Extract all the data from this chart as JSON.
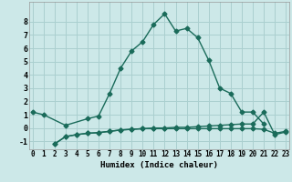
{
  "xlabel": "Humidex (Indice chaleur)",
  "bg_color": "#cce8e8",
  "grid_color": "#aacfcf",
  "line_color": "#1a6b5a",
  "line1_x": [
    0,
    1,
    3,
    5,
    6,
    7,
    8,
    9,
    10,
    11,
    12,
    13,
    14,
    15,
    16,
    17,
    18,
    19,
    20,
    21
  ],
  "line1_y": [
    1.2,
    1.0,
    0.2,
    0.7,
    0.9,
    2.6,
    4.5,
    5.8,
    6.5,
    7.8,
    8.6,
    7.3,
    7.5,
    6.8,
    5.1,
    3.0,
    2.6,
    1.2,
    1.2,
    0.3
  ],
  "line2_x": [
    2,
    3,
    4,
    5,
    6,
    7,
    8,
    9,
    10,
    11,
    12,
    13,
    14,
    15,
    16,
    17,
    18,
    19,
    20,
    21,
    22,
    23
  ],
  "line2_y": [
    -1.2,
    -0.65,
    -0.5,
    -0.4,
    -0.35,
    -0.25,
    -0.15,
    -0.1,
    -0.05,
    0.0,
    0.0,
    0.05,
    0.05,
    0.1,
    0.15,
    0.2,
    0.25,
    0.3,
    0.3,
    1.2,
    -0.5,
    -0.3
  ],
  "line3_x": [
    2,
    3,
    4,
    5,
    6,
    7,
    8,
    9,
    10,
    11,
    12,
    13,
    14,
    15,
    16,
    17,
    18,
    19,
    20,
    21,
    22,
    23
  ],
  "line3_y": [
    -1.2,
    -0.65,
    -0.5,
    -0.4,
    -0.35,
    -0.25,
    -0.15,
    -0.1,
    -0.05,
    -0.05,
    -0.05,
    -0.05,
    -0.05,
    -0.05,
    -0.05,
    -0.05,
    -0.05,
    -0.05,
    -0.05,
    -0.1,
    -0.4,
    -0.25
  ],
  "ylim": [
    -1.6,
    9.5
  ],
  "xlim": [
    -0.3,
    23.3
  ],
  "yticks": [
    -1,
    0,
    1,
    2,
    3,
    4,
    5,
    6,
    7,
    8
  ],
  "xticks": [
    0,
    1,
    2,
    3,
    4,
    5,
    6,
    7,
    8,
    9,
    10,
    11,
    12,
    13,
    14,
    15,
    16,
    17,
    18,
    19,
    20,
    21,
    22,
    23
  ],
  "tick_fontsize": 5.5,
  "label_fontsize": 6.5,
  "linewidth": 1.0,
  "markersize": 2.5
}
